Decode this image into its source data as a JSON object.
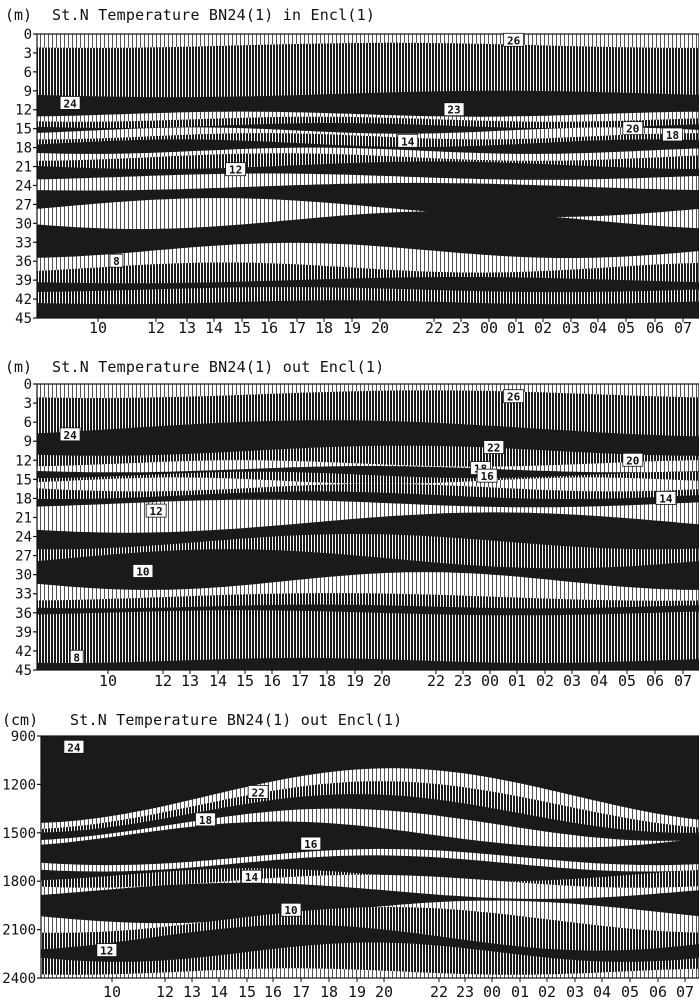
{
  "colors": {
    "ink": "#111111",
    "dark": "#1a1a1a",
    "mid": "#8a8a8a",
    "light": "#c8c8c8",
    "paper": "#ffffff"
  },
  "chart_data": [
    {
      "type": "heatmap",
      "unit_label": "(m)",
      "title": "St.N Temperature BN24(1)   in Encl(1)",
      "y_ticks": [
        "0",
        "3",
        "6",
        "9",
        "12",
        "15",
        "18",
        "21",
        "24",
        "27",
        "30",
        "33",
        "36",
        "39",
        "42",
        "45"
      ],
      "y_range": [
        0,
        45
      ],
      "x_ticks": [
        "10",
        "12",
        "13",
        "14",
        "15",
        "16",
        "17",
        "18",
        "19",
        "20",
        "22",
        "23",
        "00",
        "01",
        "02",
        "03",
        "04",
        "05",
        "06",
        "07"
      ],
      "contour_labels": [
        {
          "text": "26",
          "x": 0.72,
          "y": 1
        },
        {
          "text": "24",
          "x": 0.05,
          "y": 11
        },
        {
          "text": "23",
          "x": 0.63,
          "y": 12
        },
        {
          "text": "20",
          "x": 0.9,
          "y": 15
        },
        {
          "text": "18",
          "x": 0.96,
          "y": 16
        },
        {
          "text": "14",
          "x": 0.56,
          "y": 17
        },
        {
          "text": "12",
          "x": 0.3,
          "y": 21.5
        },
        {
          "text": "8",
          "x": 0.12,
          "y": 36
        }
      ],
      "layers": [
        {
          "top": 0,
          "tone": "light",
          "c0": 0.0,
          "a": 0.2,
          "f": 1.3,
          "p": 0.4
        },
        {
          "top": 1.3,
          "tone": "mid",
          "c0": 1.8,
          "a": 0.4,
          "f": 1.1,
          "p": 1.0
        },
        {
          "top": 8,
          "tone": "dark",
          "c0": 9.5,
          "a": 0.5,
          "f": 1.0,
          "p": 0.3
        },
        {
          "top": 12.5,
          "tone": "light",
          "c0": 12.7,
          "a": 0.4,
          "f": 1.4,
          "p": 2.0
        },
        {
          "top": 13.5,
          "tone": "mid",
          "c0": 13.5,
          "a": 0.4,
          "f": 1.4,
          "p": 1.0
        },
        {
          "top": 14.5,
          "tone": "dark",
          "c0": 14.5,
          "a": 0.4,
          "f": 1.5,
          "p": 0.5
        },
        {
          "top": 15.3,
          "tone": "light",
          "c0": 15.3,
          "a": 0.5,
          "f": 1.6,
          "p": 2.3
        },
        {
          "top": 16.2,
          "tone": "mid",
          "c0": 16.2,
          "a": 0.5,
          "f": 1.5,
          "p": 1.5
        },
        {
          "top": 17.3,
          "tone": "dark",
          "c0": 17.3,
          "a": 0.6,
          "f": 1.4,
          "p": 2.8
        },
        {
          "top": 18.5,
          "tone": "light",
          "c0": 18.5,
          "a": 0.5,
          "f": 1.5,
          "p": 0.8
        },
        {
          "top": 19.5,
          "tone": "mid",
          "c0": 19.5,
          "a": 0.6,
          "f": 1.3,
          "p": 1.7
        },
        {
          "top": 20.8,
          "tone": "dark",
          "c0": 20.8,
          "a": 0.6,
          "f": 1.2,
          "p": 0.2
        },
        {
          "top": 22.5,
          "tone": "light",
          "c0": 22.6,
          "a": 0.5,
          "f": 1.2,
          "p": 2.1
        },
        {
          "top": 23.8,
          "tone": "dark",
          "c0": 24.2,
          "a": 0.6,
          "f": 1.0,
          "p": 1.1
        },
        {
          "top": 26,
          "tone": "light",
          "c0": 27.5,
          "a": 1.5,
          "f": 1.0,
          "p": 3.0
        },
        {
          "top": 28,
          "tone": "dark",
          "c0": 29.5,
          "a": 1.4,
          "f": 1.1,
          "p": 0.5
        },
        {
          "top": 32,
          "tone": "light",
          "c0": 34.3,
          "a": 1.2,
          "f": 1.2,
          "p": 1.8
        },
        {
          "top": 35,
          "tone": "mid",
          "c0": 37.0,
          "a": 0.8,
          "f": 1.3,
          "p": 2.4
        },
        {
          "top": 38.3,
          "tone": "dark",
          "c0": 39.0,
          "a": 0.5,
          "f": 1.0,
          "p": 0.7
        },
        {
          "top": 40,
          "tone": "mid",
          "c0": 40.5,
          "a": 0.4,
          "f": 1.2,
          "p": 1.9
        },
        {
          "top": 42,
          "tone": "dark",
          "c0": 42.5,
          "a": 0.3,
          "f": 1.5,
          "p": 0.4
        }
      ]
    },
    {
      "type": "heatmap",
      "unit_label": "(m)",
      "title": "St.N Temperature BN24(1)   out Encl(1)",
      "y_ticks": [
        "0",
        "3",
        "6",
        "9",
        "12",
        "15",
        "18",
        "21",
        "24",
        "27",
        "30",
        "33",
        "36",
        "39",
        "42",
        "45"
      ],
      "y_range": [
        0,
        45
      ],
      "x_ticks": [
        "10",
        "12",
        "13",
        "14",
        "15",
        "16",
        "17",
        "18",
        "19",
        "20",
        "22",
        "23",
        "00",
        "01",
        "02",
        "03",
        "04",
        "05",
        "06",
        "07"
      ],
      "contour_labels": [
        {
          "text": "26",
          "x": 0.72,
          "y": 2
        },
        {
          "text": "24",
          "x": 0.05,
          "y": 8
        },
        {
          "text": "22",
          "x": 0.69,
          "y": 10
        },
        {
          "text": "20",
          "x": 0.9,
          "y": 12
        },
        {
          "text": "18",
          "x": 0.67,
          "y": 13.3
        },
        {
          "text": "16",
          "x": 0.68,
          "y": 14.5
        },
        {
          "text": "14",
          "x": 0.95,
          "y": 18
        },
        {
          "text": "12",
          "x": 0.18,
          "y": 20
        },
        {
          "text": "10",
          "x": 0.16,
          "y": 29.5
        },
        {
          "text": "8",
          "x": 0.06,
          "y": 43
        }
      ],
      "layers": [
        {
          "top": 0,
          "tone": "light",
          "c0": 0.0,
          "a": 0.3,
          "f": 1.3,
          "p": 0.4
        },
        {
          "top": 0.8,
          "tone": "mid",
          "c0": 1.6,
          "a": 0.6,
          "f": 1.0,
          "p": 1.0
        },
        {
          "top": 5.5,
          "tone": "dark",
          "c0": 7.0,
          "a": 1.3,
          "f": 0.8,
          "p": 2.5
        },
        {
          "top": 9.5,
          "tone": "mid",
          "c0": 10.5,
          "a": 0.8,
          "f": 1.1,
          "p": 0.9
        },
        {
          "top": 12.3,
          "tone": "light",
          "c0": 12.5,
          "a": 0.5,
          "f": 1.4,
          "p": 2.0
        },
        {
          "top": 13.2,
          "tone": "dark",
          "c0": 13.4,
          "a": 0.5,
          "f": 1.3,
          "p": 0.6
        },
        {
          "top": 14.2,
          "tone": "mid",
          "c0": 14.3,
          "a": 0.5,
          "f": 1.5,
          "p": 1.6
        },
        {
          "top": 15.2,
          "tone": "light",
          "c0": 15.2,
          "a": 0.5,
          "f": 1.6,
          "p": 2.6
        },
        {
          "top": 16.3,
          "tone": "mid",
          "c0": 16.3,
          "a": 0.6,
          "f": 1.4,
          "p": 0.2
        },
        {
          "top": 17.5,
          "tone": "dark",
          "c0": 17.5,
          "a": 0.6,
          "f": 1.3,
          "p": 1.3
        },
        {
          "top": 18.7,
          "tone": "light",
          "c0": 18.8,
          "a": 0.6,
          "f": 1.2,
          "p": 2.2
        },
        {
          "top": 20,
          "tone": "dark",
          "c0": 21.8,
          "a": 1.6,
          "f": 0.9,
          "p": 0.8
        },
        {
          "top": 24,
          "tone": "mid",
          "c0": 24.8,
          "a": 1.2,
          "f": 1.1,
          "p": 1.4
        },
        {
          "top": 26,
          "tone": "dark",
          "c0": 27.5,
          "a": 1.5,
          "f": 1.0,
          "p": 2.9
        },
        {
          "top": 29.5,
          "tone": "light",
          "c0": 31.0,
          "a": 1.4,
          "f": 1.2,
          "p": 0.3
        },
        {
          "top": 33,
          "tone": "mid",
          "c0": 33.5,
          "a": 0.6,
          "f": 1.0,
          "p": 1.9
        },
        {
          "top": 35,
          "tone": "dark",
          "c0": 35.0,
          "a": 0.3,
          "f": 1.5,
          "p": 0.7
        },
        {
          "top": 35.8,
          "tone": "mid",
          "c0": 36.0,
          "a": 0.4,
          "f": 1.2,
          "p": 2.4
        },
        {
          "top": 43,
          "tone": "dark",
          "c0": 43.5,
          "a": 0.4,
          "f": 1.4,
          "p": 1.2
        }
      ]
    },
    {
      "type": "heatmap",
      "unit_label": "(cm)",
      "title": "St.N Temperature BN24(1)   out Encl(1)",
      "y_ticks": [
        "900",
        "1200",
        "1500",
        "1800",
        "2100",
        "2400"
      ],
      "y_range": [
        900,
        2400
      ],
      "x_ticks": [
        "10",
        "12",
        "13",
        "14",
        "15",
        "16",
        "17",
        "18",
        "19",
        "20",
        "22",
        "23",
        "00",
        "01",
        "02",
        "03",
        "04",
        "05",
        "06",
        "07"
      ],
      "contour_labels": [
        {
          "text": "24",
          "x": 0.05,
          "y": 970
        },
        {
          "text": "22",
          "x": 0.33,
          "y": 1250
        },
        {
          "text": "18",
          "x": 0.25,
          "y": 1420
        },
        {
          "text": "16",
          "x": 0.41,
          "y": 1570
        },
        {
          "text": "14",
          "x": 0.32,
          "y": 1775
        },
        {
          "text": "10",
          "x": 0.38,
          "y": 1980
        },
        {
          "text": "12",
          "x": 0.1,
          "y": 2230
        }
      ],
      "layers": [
        {
          "top": 900,
          "tone": "dark",
          "c0": 900,
          "a": 0,
          "f": 1.0,
          "p": 0
        },
        {
          "top": 1000,
          "tone": "light",
          "c0": 1270,
          "a": 170,
          "f": 0.9,
          "p": 1.7
        },
        {
          "top": 1150,
          "tone": "mid",
          "c0": 1330,
          "a": 150,
          "f": 0.9,
          "p": 1.8
        },
        {
          "top": 1250,
          "tone": "dark",
          "c0": 1380,
          "a": 120,
          "f": 1.0,
          "p": 1.7
        },
        {
          "top": 1350,
          "tone": "light",
          "c0": 1450,
          "a": 100,
          "f": 1.0,
          "p": 1.9
        },
        {
          "top": 1400,
          "tone": "dark",
          "c0": 1510,
          "a": 80,
          "f": 1.1,
          "p": 2.2
        },
        {
          "top": 1600,
          "tone": "light",
          "c0": 1650,
          "a": 50,
          "f": 1.2,
          "p": 0.8
        },
        {
          "top": 1650,
          "tone": "dark",
          "c0": 1690,
          "a": 50,
          "f": 1.2,
          "p": 0.9
        },
        {
          "top": 1700,
          "tone": "mid",
          "c0": 1760,
          "a": 40,
          "f": 1.3,
          "p": 2.1
        },
        {
          "top": 1760,
          "tone": "light",
          "c0": 1800,
          "a": 40,
          "f": 1.2,
          "p": 1.0
        },
        {
          "top": 1800,
          "tone": "dark",
          "c0": 1860,
          "a": 50,
          "f": 1.1,
          "p": 2.6
        },
        {
          "top": 1900,
          "tone": "light",
          "c0": 1990,
          "a": 70,
          "f": 1.0,
          "p": 0.4
        },
        {
          "top": 1950,
          "tone": "mid",
          "c0": 2040,
          "a": 80,
          "f": 1.0,
          "p": 1.4
        },
        {
          "top": 2050,
          "tone": "dark",
          "c0": 2150,
          "a": 80,
          "f": 1.1,
          "p": 2.0
        },
        {
          "top": 2200,
          "tone": "mid",
          "c0": 2240,
          "a": 60,
          "f": 1.3,
          "p": 0.6
        },
        {
          "top": 2350,
          "tone": "light",
          "c0": 2360,
          "a": 20,
          "f": 1.5,
          "p": 1.1
        }
      ]
    }
  ]
}
